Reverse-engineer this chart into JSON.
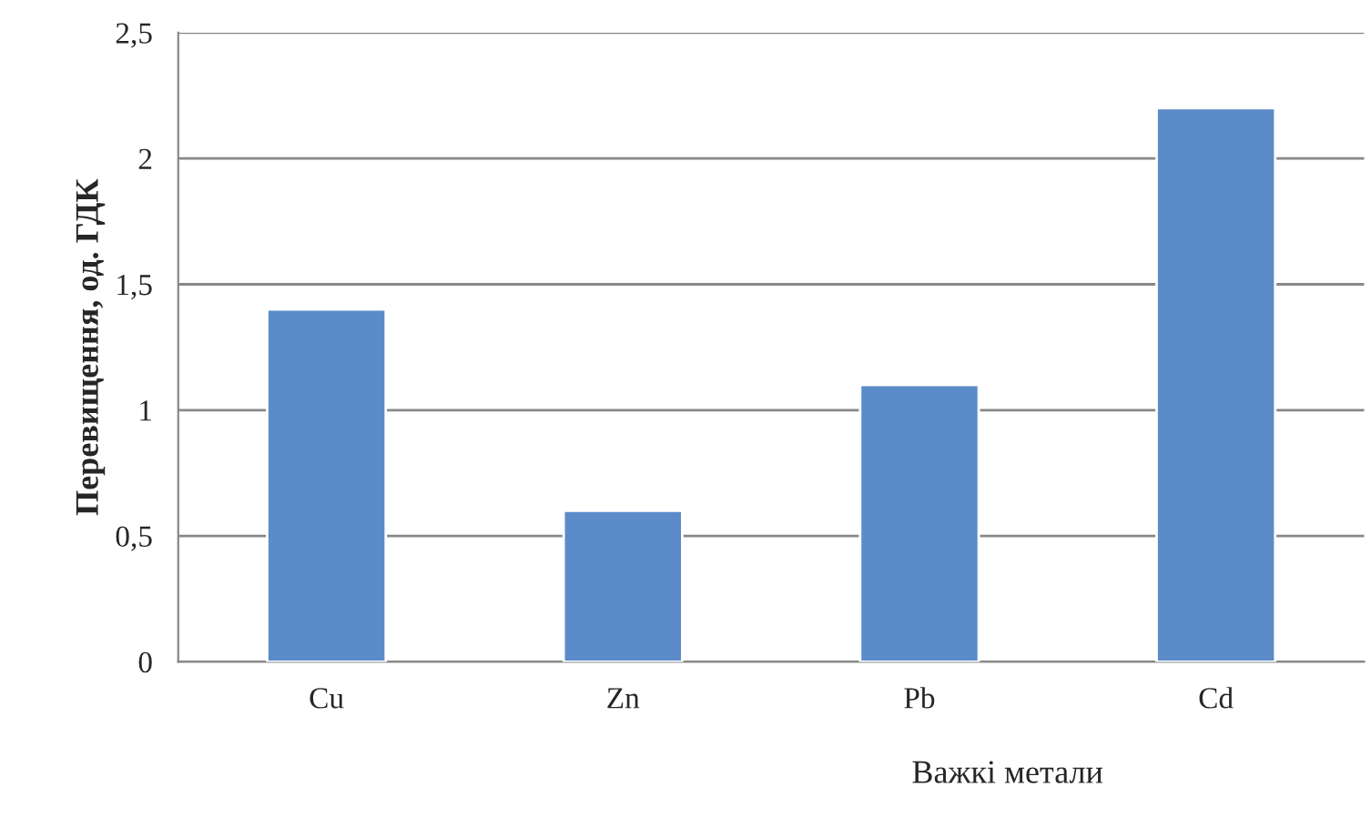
{
  "chart_data": {
    "type": "bar",
    "xlabel": "Важкі метали",
    "ylabel": "Перевищення, од. ГДК",
    "categories": [
      "Cu",
      "Zn",
      "Pb",
      "Cd"
    ],
    "values": [
      1.4,
      0.6,
      1.1,
      2.2
    ],
    "color": "#5b8bc9",
    "ylim": [
      0,
      2.5
    ],
    "yticks": [
      {
        "value": 0,
        "label": "0"
      },
      {
        "value": 0.5,
        "label": "0,5"
      },
      {
        "value": 1,
        "label": "1"
      },
      {
        "value": 1.5,
        "label": "1,5"
      },
      {
        "value": 2,
        "label": "2"
      },
      {
        "value": 2.5,
        "label": "2,5"
      }
    ],
    "grid": "y",
    "legend": false
  }
}
